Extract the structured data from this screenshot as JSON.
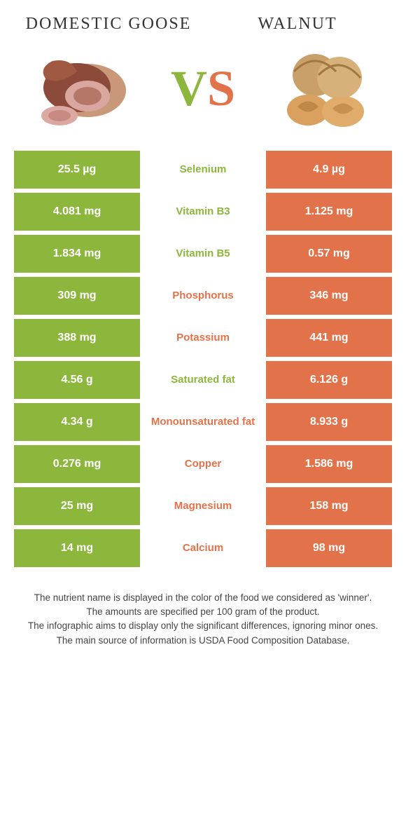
{
  "colors": {
    "left": "#8cb63c",
    "right": "#e2724a",
    "background": "#ffffff",
    "text": "#333333",
    "footer_text": "#444444"
  },
  "typography": {
    "heading_family": "Georgia, serif",
    "heading_size_pt": 18,
    "vs_size_pt": 54,
    "cell_size_pt": 12,
    "footer_size_pt": 10
  },
  "header": {
    "left_title": "Domestic Goose",
    "right_title": "Walnut",
    "vs_v": "V",
    "vs_s": "S"
  },
  "rows": [
    {
      "left": "25.5 µg",
      "name": "Selenium",
      "right": "4.9 µg",
      "winner": "left"
    },
    {
      "left": "4.081 mg",
      "name": "Vitamin B3",
      "right": "1.125 mg",
      "winner": "left"
    },
    {
      "left": "1.834 mg",
      "name": "Vitamin B5",
      "right": "0.57 mg",
      "winner": "left"
    },
    {
      "left": "309 mg",
      "name": "Phosphorus",
      "right": "346 mg",
      "winner": "right"
    },
    {
      "left": "388 mg",
      "name": "Potassium",
      "right": "441 mg",
      "winner": "right"
    },
    {
      "left": "4.56 g",
      "name": "Saturated fat",
      "right": "6.126 g",
      "winner": "left"
    },
    {
      "left": "4.34 g",
      "name": "Monounsaturated fat",
      "right": "8.933 g",
      "winner": "right"
    },
    {
      "left": "0.276 mg",
      "name": "Copper",
      "right": "1.586 mg",
      "winner": "right"
    },
    {
      "left": "25 mg",
      "name": "Magnesium",
      "right": "158 mg",
      "winner": "right"
    },
    {
      "left": "14 mg",
      "name": "Calcium",
      "right": "98 mg",
      "winner": "right"
    }
  ],
  "footer": {
    "line1": "The nutrient name is displayed in the color of the food we considered as 'winner'.",
    "line2": "The amounts are specified per 100 gram of the product.",
    "line3": "The infographic aims to display only the significant differences, ignoring minor ones.",
    "line4": "The main source of information is USDA Food Composition Database."
  }
}
